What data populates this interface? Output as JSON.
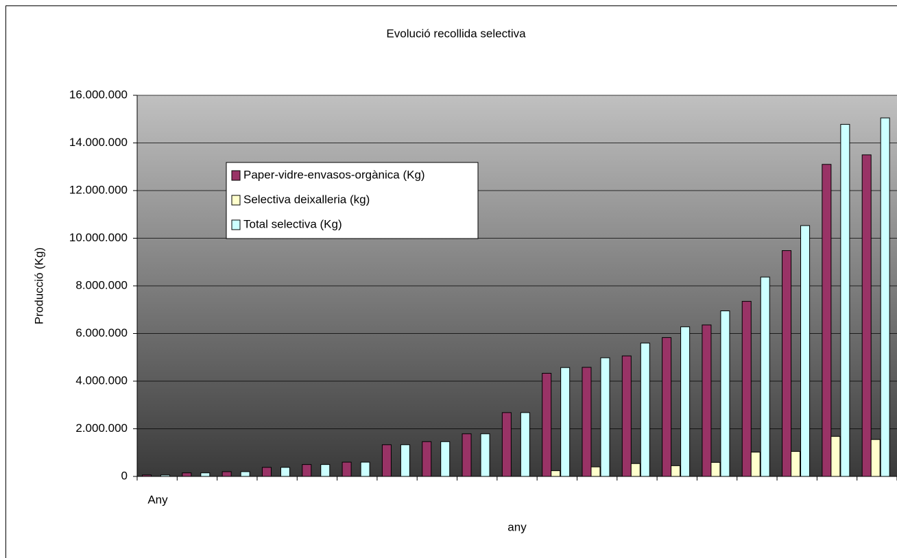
{
  "chart_data": {
    "type": "bar",
    "title": "Evolució recollida selectiva",
    "x_label": "any",
    "y_label": "Producció (Kg)",
    "categories": [
      "Any",
      null,
      null,
      null,
      null,
      null,
      null,
      null,
      null,
      null,
      null,
      null,
      null,
      null,
      null,
      null,
      null,
      null,
      null
    ],
    "series": [
      {
        "name": "Paper-vidre-envasos-orgànica (Kg)",
        "color": "#993366",
        "values": [
          60000,
          150000,
          200000,
          380000,
          500000,
          600000,
          1330000,
          1460000,
          1790000,
          2680000,
          4330000,
          4580000,
          5060000,
          5830000,
          6360000,
          7350000,
          9480000,
          13100000,
          13500000
        ]
      },
      {
        "name": "Selectiva deixalleria (kg)",
        "color": "#ffffcc",
        "values": [
          0,
          0,
          0,
          0,
          0,
          0,
          0,
          0,
          0,
          0,
          240000,
          400000,
          540000,
          450000,
          590000,
          1020000,
          1050000,
          1680000,
          1550000
        ]
      },
      {
        "name": "Total selectiva (Kg)",
        "color": "#ccffff",
        "values": [
          60000,
          150000,
          200000,
          380000,
          500000,
          600000,
          1330000,
          1460000,
          1790000,
          2680000,
          4570000,
          4980000,
          5600000,
          6280000,
          6950000,
          8370000,
          10530000,
          14780000,
          15050000
        ]
      }
    ],
    "ylim": [
      0,
      16000000
    ],
    "yticks": [
      0,
      {
        "value": 2000000,
        "label": "2.000.000"
      },
      {
        "value": 4000000,
        "label": "4.000.000"
      },
      {
        "value": 6000000,
        "label": "6.000.000"
      },
      {
        "value": 8000000,
        "label": "8.000.000"
      },
      {
        "value": 10000000,
        "label": "10.000.000"
      },
      {
        "value": 12000000,
        "label": "12.000.000"
      },
      {
        "value": 14000000,
        "label": "14.000.000"
      },
      {
        "value": 16000000,
        "label": "16.000.000"
      }
    ],
    "grid": true,
    "legend": "upper-left"
  }
}
